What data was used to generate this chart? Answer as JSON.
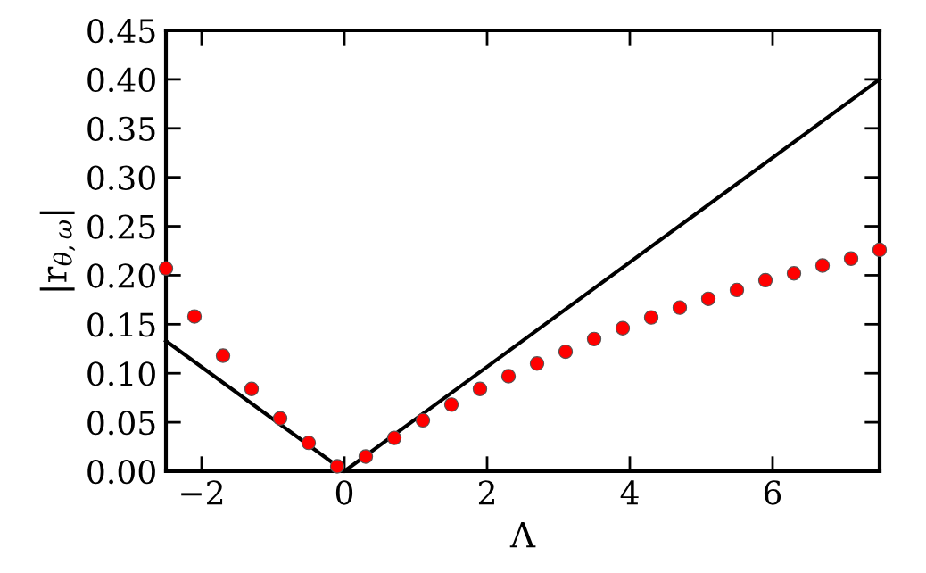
{
  "chart_data": {
    "type": "scatter",
    "xlabel": "Λ",
    "ylabel": "|r$_{θ,ω}$|",
    "xlim": [
      -2.5,
      7.5
    ],
    "ylim": [
      0,
      0.45
    ],
    "xticks": [
      {
        "value": -2,
        "label": "−2"
      },
      0,
      2,
      4,
      6
    ],
    "yticks": [
      {
        "value": 0,
        "label": "0.00"
      },
      {
        "value": 0.05,
        "label": "0.05"
      },
      {
        "value": 0.1,
        "label": "0.10"
      },
      {
        "value": 0.15,
        "label": "0.15"
      },
      {
        "value": 0.2,
        "label": "0.20"
      },
      {
        "value": 0.25,
        "label": "0.25"
      },
      {
        "value": 0.3,
        "label": "0.30"
      },
      {
        "value": 0.35,
        "label": "0.35"
      },
      {
        "value": 0.4,
        "label": "0.40"
      },
      {
        "value": 0.45,
        "label": "0.45"
      }
    ],
    "grid": false,
    "legend": false,
    "series": [
      {
        "type": "line",
        "color": "#000000",
        "marker": "none",
        "line_style": "solid",
        "x": [
          -2.5,
          0,
          7.5
        ],
        "values": [
          0.133,
          0,
          0.4
        ]
      },
      {
        "color": "#ff0000",
        "marker": "circle",
        "x": [
          -2.5,
          -2.1,
          -1.7,
          -1.3,
          -0.9,
          -0.5,
          -0.1,
          0.3,
          0.7,
          1.1,
          1.5,
          1.9,
          2.3,
          2.7,
          3.1,
          3.5,
          3.9,
          4.3,
          4.7,
          5.1,
          5.5,
          5.9,
          6.3,
          6.7,
          7.1,
          7.5
        ],
        "values": [
          0.207,
          0.158,
          0.118,
          0.084,
          0.054,
          0.029,
          0.005,
          0.015,
          0.034,
          0.052,
          0.068,
          0.084,
          0.097,
          0.11,
          0.122,
          0.135,
          0.146,
          0.157,
          0.167,
          0.176,
          0.185,
          0.195,
          0.202,
          0.21,
          0.217,
          0.226
        ]
      }
    ]
  }
}
